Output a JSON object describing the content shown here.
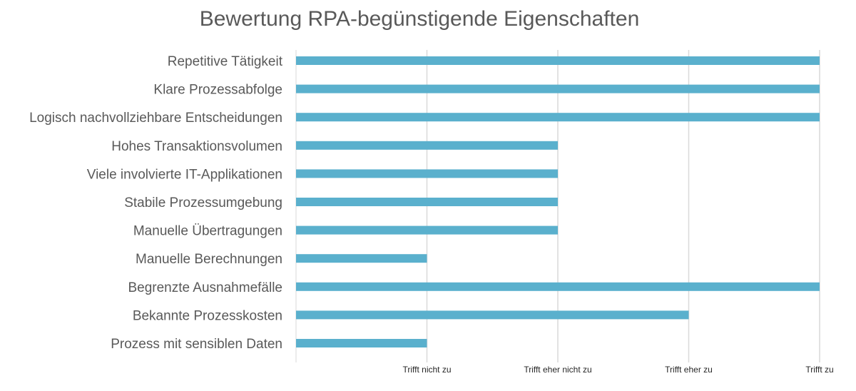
{
  "chart_data": {
    "type": "bar",
    "orientation": "horizontal",
    "title": "Bewertung RPA-begünstigende Eigenschaften",
    "categories": [
      "Repetitive Tätigkeit",
      "Klare Prozessabfolge",
      "Logisch nachvollziehbare Entscheidungen",
      "Hohes Transaktionsvolumen",
      "Viele involvierte IT-Applikationen",
      "Stabile Prozessumgebung",
      "Manuelle Übertragungen",
      "Manuelle Berechnungen",
      "Begrenzte Ausnahmefälle",
      "Bekannte Prozesskosten",
      "Prozess mit sensiblen Daten"
    ],
    "values": [
      4,
      4,
      4,
      2,
      2,
      2,
      2,
      1,
      4,
      3,
      1
    ],
    "xlim": [
      0,
      4
    ],
    "x_ticks": [
      {
        "value": 1,
        "label": "Trifft nicht zu"
      },
      {
        "value": 2,
        "label": "Trifft eher nicht zu"
      },
      {
        "value": 3,
        "label": "Trifft eher zu"
      },
      {
        "value": 4,
        "label": "Trifft zu"
      }
    ],
    "grid": true,
    "bar_color": "#5ab0cd",
    "grid_color": "#d9d9d9"
  }
}
